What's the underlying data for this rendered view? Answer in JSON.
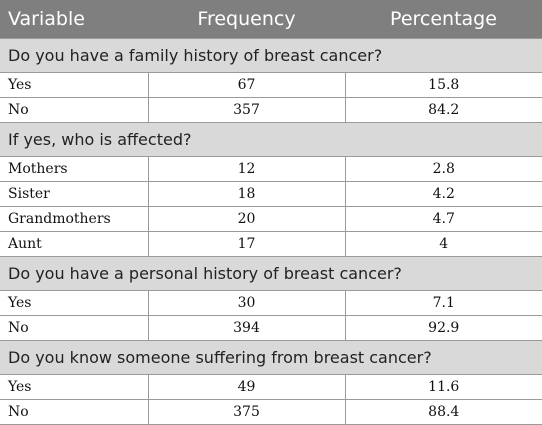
{
  "header": {
    "variable": "Variable",
    "frequency": "Frequency",
    "percentage": "Percentage"
  },
  "sections": [
    {
      "question": "Do you have a family history of breast cancer?",
      "rows": [
        {
          "label": "Yes",
          "frequency": "67",
          "percentage": "15.8"
        },
        {
          "label": "No",
          "frequency": "357",
          "percentage": "84.2"
        }
      ]
    },
    {
      "question": "If yes, who is affected?",
      "rows": [
        {
          "label": "Mothers",
          "frequency": "12",
          "percentage": "2.8"
        },
        {
          "label": "Sister",
          "frequency": "18",
          "percentage": "4.2"
        },
        {
          "label": "Grandmothers",
          "frequency": "20",
          "percentage": "4.7"
        },
        {
          "label": "Aunt",
          "frequency": "17",
          "percentage": "4"
        }
      ]
    },
    {
      "question": "Do you have a personal history of breast cancer?",
      "rows": [
        {
          "label": "Yes",
          "frequency": "30",
          "percentage": "7.1"
        },
        {
          "label": "No",
          "frequency": "394",
          "percentage": "92.9"
        }
      ]
    },
    {
      "question": "Do you know someone suffering from breast cancer?",
      "rows": [
        {
          "label": "Yes",
          "frequency": "49",
          "percentage": "11.6"
        },
        {
          "label": "No",
          "frequency": "375",
          "percentage": "88.4"
        }
      ]
    }
  ]
}
